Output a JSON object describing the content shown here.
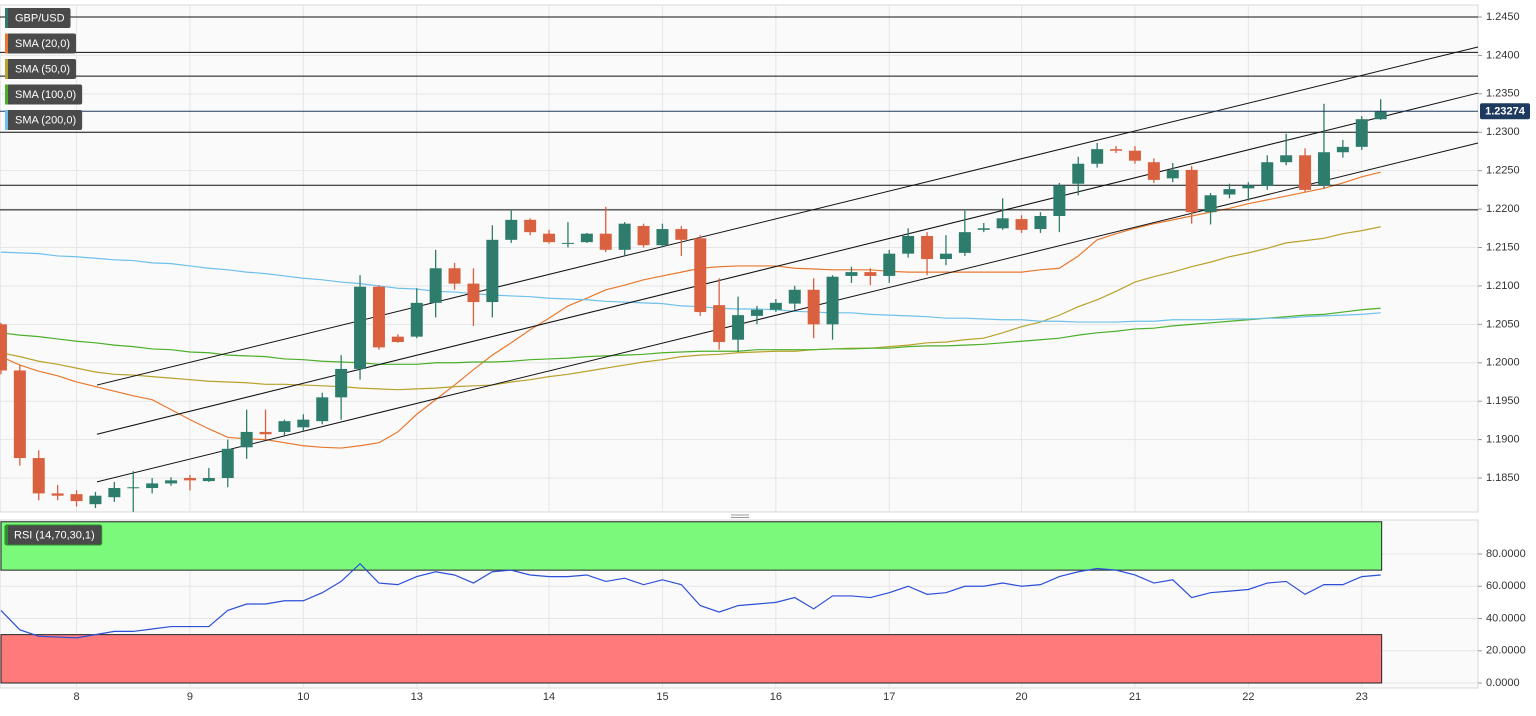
{
  "chart_data": {
    "type": "candlestick",
    "legend": "top-left",
    "grid": true,
    "categories": [
      null,
      null,
      null,
      null,
      "8",
      null,
      null,
      null,
      null,
      null,
      "9",
      null,
      null,
      null,
      null,
      null,
      "10",
      null,
      null,
      null,
      null,
      null,
      "13",
      null,
      null,
      null,
      null,
      null,
      null,
      "14",
      null,
      null,
      null,
      null,
      null,
      "15",
      null,
      null,
      null,
      null,
      null,
      "16",
      null,
      null,
      null,
      null,
      null,
      "17",
      null,
      null,
      null,
      null,
      null,
      null,
      "20",
      null,
      null,
      null,
      null,
      null,
      "21",
      null,
      null,
      null,
      null,
      null,
      "22",
      null,
      null,
      null,
      null,
      null,
      "23",
      null
    ],
    "xlim": [
      -0.05,
      78.15
    ],
    "ylim": [
      1.18058,
      1.24656
    ],
    "yticks": [
      {
        "value": 1.245,
        "label": "1.2450"
      },
      {
        "value": 1.24,
        "label": "1.2400"
      },
      {
        "value": 1.235,
        "label": "1.2350"
      },
      {
        "value": 1.23,
        "label": "1.2300"
      },
      {
        "value": 1.225,
        "label": "1.2250"
      },
      {
        "value": 1.22,
        "label": "1.2200"
      },
      {
        "value": 1.215,
        "label": "1.2150"
      },
      {
        "value": 1.21,
        "label": "1.2100"
      },
      {
        "value": 1.205,
        "label": "1.2050"
      },
      {
        "value": 1.2,
        "label": "1.2000"
      },
      {
        "value": 1.195,
        "label": "1.1950"
      },
      {
        "value": 1.19,
        "label": "1.1900"
      },
      {
        "value": 1.185,
        "label": "1.1850"
      }
    ],
    "ohlc": {
      "name": "GBP/USD",
      "up_color": "#2e7d6c",
      "down_color": "#d9613f",
      "open": [
        1.205,
        1.199,
        1.1876,
        1.183,
        1.1829,
        1.1816,
        1.1825,
        1.1838,
        1.1837,
        1.1843,
        1.185,
        1.1846,
        1.185,
        1.189,
        1.191,
        1.191,
        1.1916,
        1.1924,
        1.1955,
        1.1992,
        1.2099,
        1.2034,
        1.2034,
        1.2078,
        1.2123,
        1.2103,
        1.2079,
        1.216,
        1.2186,
        1.2168,
        1.2156,
        1.2157,
        1.2168,
        1.2147,
        1.2178,
        1.2153,
        1.2174,
        1.2162,
        1.2075,
        1.203,
        1.2061,
        1.2069,
        1.2077,
        1.2095,
        1.205,
        1.2113,
        1.2118,
        1.2113,
        1.2142,
        1.2165,
        1.2135,
        1.2143,
        1.2173,
        1.2175,
        1.2187,
        1.2174,
        1.2191,
        1.2233,
        1.2259,
        1.2278,
        1.2276,
        1.2261,
        1.224,
        1.2251,
        1.2196,
        1.2219,
        1.2227,
        1.223,
        1.2261,
        1.227,
        1.2231,
        1.2274,
        1.2281,
        1.2317
      ],
      "high": [
        1.2052,
        1.1997,
        1.1886,
        1.1841,
        1.1834,
        1.1832,
        1.1845,
        1.1859,
        1.185,
        1.1851,
        1.1854,
        1.1863,
        1.19,
        1.1939,
        1.1939,
        1.1926,
        1.1933,
        1.1961,
        1.201,
        1.2114,
        1.2101,
        1.2037,
        1.2097,
        1.2147,
        1.213,
        1.2123,
        1.2179,
        1.2199,
        1.2188,
        1.2173,
        1.2183,
        1.2169,
        1.2203,
        1.2183,
        1.2181,
        1.2181,
        1.2178,
        1.2166,
        1.211,
        1.2086,
        1.2074,
        1.2083,
        1.21,
        1.211,
        1.2114,
        1.2125,
        1.2123,
        1.2147,
        1.2175,
        1.217,
        1.2166,
        1.2199,
        1.2182,
        1.2214,
        1.2192,
        1.2196,
        1.2234,
        1.2268,
        1.2286,
        1.2282,
        1.2282,
        1.2266,
        1.226,
        1.2256,
        1.2221,
        1.2233,
        1.2235,
        1.227,
        1.2298,
        1.2279,
        1.2337,
        1.229,
        1.2321,
        1.2343
      ],
      "low": [
        1.1985,
        1.1866,
        1.1821,
        1.1821,
        1.1813,
        1.1811,
        1.1819,
        1.1806,
        1.183,
        1.184,
        1.1834,
        1.1845,
        1.1838,
        1.1875,
        1.19,
        1.1905,
        1.1911,
        1.192,
        1.1926,
        1.1978,
        1.2017,
        1.2026,
        1.2032,
        1.2059,
        1.2095,
        1.2048,
        1.2059,
        1.2156,
        1.2166,
        1.2155,
        1.215,
        1.2156,
        1.2144,
        1.214,
        1.215,
        1.215,
        1.2139,
        1.2061,
        1.2017,
        1.2014,
        1.205,
        1.2066,
        1.2069,
        1.2032,
        1.203,
        1.2104,
        1.2101,
        1.2104,
        1.2137,
        1.2114,
        1.2127,
        1.2139,
        1.217,
        1.2173,
        1.2169,
        1.2169,
        1.217,
        1.2218,
        1.2254,
        1.2273,
        1.2259,
        1.2234,
        1.2235,
        1.2181,
        1.218,
        1.2214,
        1.2211,
        1.2225,
        1.2257,
        1.2222,
        1.2227,
        1.2267,
        1.2277,
        1.2316
      ],
      "close": [
        1.199,
        1.1876,
        1.183,
        1.1827,
        1.182,
        1.1827,
        1.1837,
        1.1838,
        1.1843,
        1.1847,
        1.1847,
        1.185,
        1.1888,
        1.191,
        1.1907,
        1.1924,
        1.1926,
        1.1955,
        1.1992,
        1.2099,
        1.202,
        1.2027,
        1.2078,
        1.2123,
        1.2103,
        1.2079,
        1.216,
        1.2186,
        1.217,
        1.2157,
        1.2156,
        1.2168,
        1.2147,
        1.2181,
        1.2153,
        1.2174,
        1.216,
        1.2066,
        1.2027,
        1.2062,
        1.2069,
        1.2078,
        1.2095,
        1.205,
        1.2112,
        1.2118,
        1.2113,
        1.2142,
        1.2165,
        1.2135,
        1.2142,
        1.217,
        1.2175,
        1.2188,
        1.2173,
        1.2191,
        1.2231,
        1.2259,
        1.2278,
        1.2276,
        1.2263,
        1.2238,
        1.2251,
        1.2196,
        1.2218,
        1.2226,
        1.2231,
        1.2261,
        1.227,
        1.2225,
        1.2274,
        1.2281,
        1.2317,
        1.2327
      ]
    },
    "series": [
      {
        "name": "SMA (20,0)",
        "color": "#e8782f",
        "values": [
          1.2008,
          1.1997,
          1.1989,
          1.1983,
          1.1975,
          1.1969,
          1.1963,
          1.1957,
          1.1952,
          1.1939,
          1.1926,
          1.1914,
          1.1903,
          1.1901,
          1.19,
          1.1896,
          1.1892,
          1.189,
          1.1889,
          1.1892,
          1.1896,
          1.191,
          1.1933,
          1.1952,
          1.1971,
          1.1991,
          1.201,
          1.2026,
          1.2043,
          1.2058,
          1.2074,
          1.2084,
          1.2095,
          1.2101,
          1.2108,
          1.2113,
          1.2118,
          1.2123,
          1.2125,
          1.2126,
          1.2126,
          1.2126,
          1.2123,
          1.2122,
          1.2121,
          1.2121,
          1.2121,
          1.2119,
          1.2118,
          1.2118,
          1.2118,
          1.2118,
          1.2118,
          1.2118,
          1.2118,
          1.2121,
          1.2123,
          1.2139,
          1.216,
          1.2168,
          1.2175,
          1.2181,
          1.2186,
          1.2191,
          1.2196,
          1.2201,
          1.2207,
          1.2212,
          1.2217,
          1.2222,
          1.2227,
          1.2234,
          1.2242,
          1.2248
        ]
      },
      {
        "name": "SMA (50,0)",
        "color": "#b8a22c",
        "values": [
          1.2013,
          1.2008,
          1.2002,
          1.1998,
          1.1993,
          1.1988,
          1.1985,
          1.1984,
          1.1982,
          1.198,
          1.1978,
          1.1976,
          1.1975,
          1.1974,
          1.1972,
          1.1972,
          1.1971,
          1.197,
          1.1969,
          1.1967,
          1.1966,
          1.1965,
          1.1966,
          1.1967,
          1.1969,
          1.197,
          1.1971,
          1.1975,
          1.1978,
          1.1982,
          1.1985,
          1.1989,
          1.1993,
          1.1997,
          1.2001,
          1.2004,
          1.2008,
          1.201,
          1.2011,
          1.2013,
          1.2014,
          1.2015,
          1.2015,
          1.2017,
          1.2018,
          1.2019,
          1.2019,
          1.2021,
          1.2023,
          1.2026,
          1.2027,
          1.203,
          1.2032,
          1.2039,
          1.2047,
          1.2053,
          1.2062,
          1.2073,
          1.2082,
          1.2093,
          1.2105,
          1.2112,
          1.2118,
          1.2125,
          1.2131,
          1.2138,
          1.2143,
          1.2149,
          1.2156,
          1.2159,
          1.2162,
          1.2168,
          1.2172,
          1.2177
        ]
      },
      {
        "name": "SMA (100,0)",
        "color": "#4caf2a",
        "values": [
          1.2039,
          1.2036,
          1.2034,
          1.2031,
          1.2028,
          1.2026,
          1.2023,
          1.2021,
          1.2018,
          1.2017,
          1.2014,
          1.2013,
          1.201,
          1.2009,
          1.2008,
          1.2005,
          1.2004,
          1.2002,
          1.2001,
          1.2,
          1.1998,
          1.1998,
          1.1998,
          1.2,
          1.2,
          1.2001,
          1.2001,
          1.2002,
          1.2004,
          1.2005,
          1.2006,
          1.2008,
          1.2009,
          1.201,
          1.2011,
          1.2013,
          1.2014,
          1.2015,
          1.2015,
          1.2015,
          1.2017,
          1.2017,
          1.2017,
          1.2017,
          1.2018,
          1.2018,
          1.2019,
          1.2019,
          1.2021,
          1.2022,
          1.2022,
          1.2023,
          1.2024,
          1.2026,
          1.2028,
          1.203,
          1.2032,
          1.2036,
          1.2039,
          1.2041,
          1.2044,
          1.2045,
          1.2048,
          1.205,
          1.2052,
          1.2054,
          1.2056,
          1.2058,
          1.206,
          1.2062,
          1.2063,
          1.2066,
          1.2069,
          1.2071
        ]
      },
      {
        "name": "SMA (200,0)",
        "color": "#6ec0ea",
        "values": [
          1.2144,
          1.2143,
          1.2142,
          1.2139,
          1.2138,
          1.2136,
          1.2134,
          1.2133,
          1.213,
          1.2129,
          1.2126,
          1.2123,
          1.2121,
          1.2118,
          1.2116,
          1.2113,
          1.211,
          1.2108,
          1.2105,
          1.2103,
          1.21,
          1.2097,
          1.2096,
          1.2093,
          1.2092,
          1.209,
          1.2088,
          1.2087,
          1.2086,
          1.2084,
          1.2083,
          1.2082,
          1.208,
          1.2079,
          1.2078,
          1.2077,
          1.2074,
          1.2073,
          1.2071,
          1.207,
          1.207,
          1.2069,
          1.2067,
          1.2066,
          1.2065,
          1.2065,
          1.2063,
          1.2062,
          1.2061,
          1.206,
          1.2058,
          1.2058,
          1.2057,
          1.2056,
          1.2056,
          1.2054,
          1.2054,
          1.2053,
          1.2053,
          1.2053,
          1.2054,
          1.2054,
          1.2056,
          1.2056,
          1.2056,
          1.2057,
          1.2057,
          1.2058,
          1.2058,
          1.206,
          1.2061,
          1.2062,
          1.2063,
          1.2065
        ]
      }
    ],
    "levels": [
      1.245,
      1.2404,
      1.2373,
      1.23,
      1.2231,
      1.2199
    ],
    "level_color": "#111111",
    "trendlines": [
      {
        "x": [
          5.08,
          78.15
        ],
        "y": [
          1.1971,
          1.2411
        ]
      },
      {
        "x": [
          5.08,
          78.15
        ],
        "y": [
          1.1907,
          1.2351
        ]
      },
      {
        "x": [
          5.08,
          78.15
        ],
        "y": [
          1.1845,
          1.2286
        ]
      }
    ],
    "last_price": 1.23274,
    "last_price_color": "#1f3a5f",
    "indicator": {
      "type": "line",
      "name": "RSI (14,70,30,1)",
      "color": "#2d4fd8",
      "ylim": [
        -3.1,
        101.1
      ],
      "yticks": [
        {
          "value": 80,
          "label": "80.0000"
        },
        {
          "value": 60,
          "label": "60.0000"
        },
        {
          "value": 40,
          "label": "40.0000"
        },
        {
          "value": 20,
          "label": "20.0000"
        },
        {
          "value": 0,
          "label": "0.0000"
        }
      ],
      "overbought_zone": [
        70,
        100
      ],
      "overbought_color": "#7bf97b",
      "oversold_zone": [
        0,
        30
      ],
      "oversold_color": "#ff7b7b",
      "values": [
        45,
        33,
        29,
        28.5,
        28,
        30,
        32,
        32,
        33.5,
        35,
        35,
        35,
        45,
        49,
        49,
        51,
        51,
        56,
        63,
        74,
        62,
        61,
        66,
        69,
        67,
        62,
        69,
        70,
        67,
        66,
        66,
        67,
        63,
        65,
        61,
        64,
        61,
        48,
        44,
        48,
        49,
        50,
        53,
        46,
        54,
        54,
        53,
        56,
        60,
        55,
        56,
        60,
        60,
        62,
        60,
        61,
        66,
        69,
        71,
        70,
        67,
        62,
        64,
        53,
        56,
        57,
        58,
        62,
        63,
        55,
        61,
        61,
        66,
        67
      ]
    }
  }
}
